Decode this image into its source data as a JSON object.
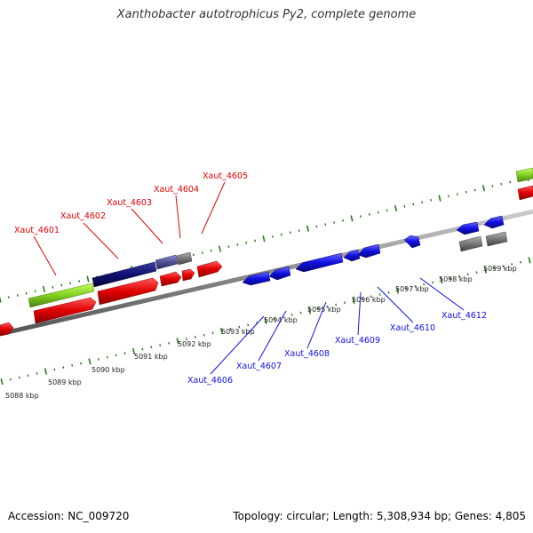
{
  "title": "Xanthobacter autotrophicus Py2, complete genome",
  "footer": {
    "accession": "Accession: NC_009720",
    "summary": "Topology: circular; Length: 5,308,934 bp; Genes: 4,805"
  },
  "colors": {
    "forward_strand": "#e00000",
    "reverse_strand": "#1010e0",
    "tick": "#2a7a1a",
    "backbone": "#888888",
    "feature_green": "#80d020",
    "feature_navy": "#101070",
    "feature_grey": "#777777"
  },
  "tick_labels": [
    "5088 kbp",
    "5089 kbp",
    "5090 kbp",
    "5091 kbp",
    "5092 kbp",
    "5093 kbp",
    "5094 kbp",
    "5095 kbp",
    "5096 kbp",
    "5097 kbp",
    "5098 kbp",
    "5099 kbp"
  ],
  "genes": {
    "forward": [
      "Xaut_4601",
      "Xaut_4602",
      "Xaut_4603",
      "Xaut_4604",
      "Xaut_4605"
    ],
    "reverse": [
      "Xaut_4606",
      "Xaut_4607",
      "Xaut_4608",
      "Xaut_4609",
      "Xaut_4610",
      "Xaut_4612"
    ]
  }
}
